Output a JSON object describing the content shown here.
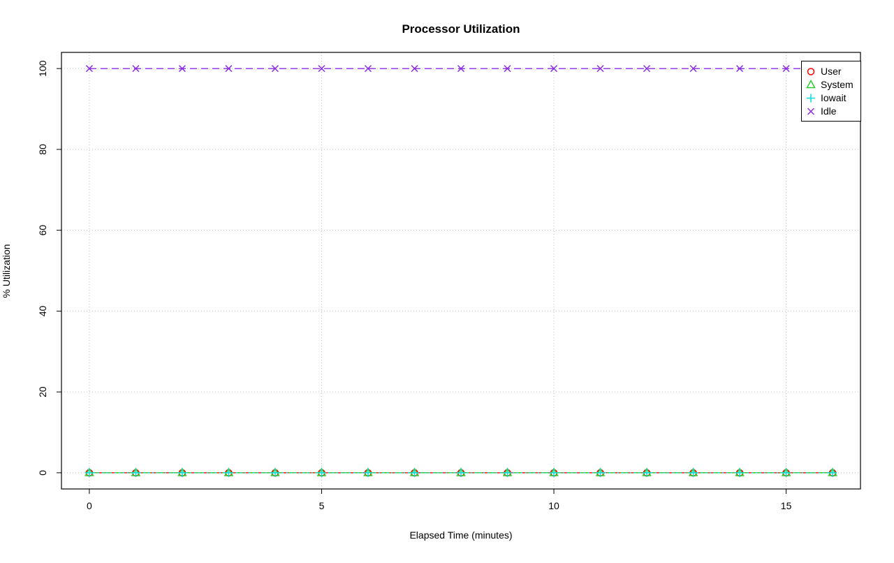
{
  "chart_data": {
    "type": "line",
    "title": "Processor Utilization",
    "xlabel": "Elapsed Time (minutes)",
    "ylabel": "% Utilization",
    "x": [
      0,
      1,
      2,
      3,
      4,
      5,
      6,
      7,
      8,
      9,
      10,
      11,
      12,
      13,
      14,
      15,
      16
    ],
    "series": [
      {
        "name": "User",
        "color": "#FF0000",
        "marker": "circle",
        "dash": "",
        "values": [
          0,
          0,
          0,
          0,
          0,
          0,
          0,
          0,
          0,
          0,
          0,
          0,
          0,
          0,
          0,
          0,
          0
        ]
      },
      {
        "name": "System",
        "color": "#2DCC2D",
        "marker": "triangle",
        "dash": "12 7",
        "values": [
          0,
          0,
          0,
          0,
          0,
          0,
          0,
          0,
          0,
          0,
          0,
          0,
          0,
          0,
          0,
          0,
          0
        ]
      },
      {
        "name": "Iowait",
        "color": "#00DEDE",
        "marker": "plus",
        "dash": "2 4",
        "values": [
          0,
          0,
          0,
          0,
          0,
          0,
          0,
          0,
          0,
          0,
          0,
          0,
          0,
          0,
          0,
          0,
          0
        ]
      },
      {
        "name": "Idle",
        "color": "#8A2BE2",
        "marker": "x",
        "dash": "10 6",
        "values": [
          100,
          100,
          100,
          100,
          100,
          100,
          100,
          100,
          100,
          100,
          100,
          100,
          100,
          100,
          100,
          100,
          100
        ]
      }
    ],
    "xticks": [
      0,
      5,
      10,
      15
    ],
    "yticks": [
      0,
      20,
      40,
      60,
      80,
      100
    ],
    "xlim": [
      -0.6,
      16.6
    ],
    "ylim": [
      -4,
      104
    ],
    "grid": true,
    "legend_position": "top-right",
    "legend_labels": [
      "User",
      "System",
      "Iowait",
      "Idle"
    ]
  }
}
